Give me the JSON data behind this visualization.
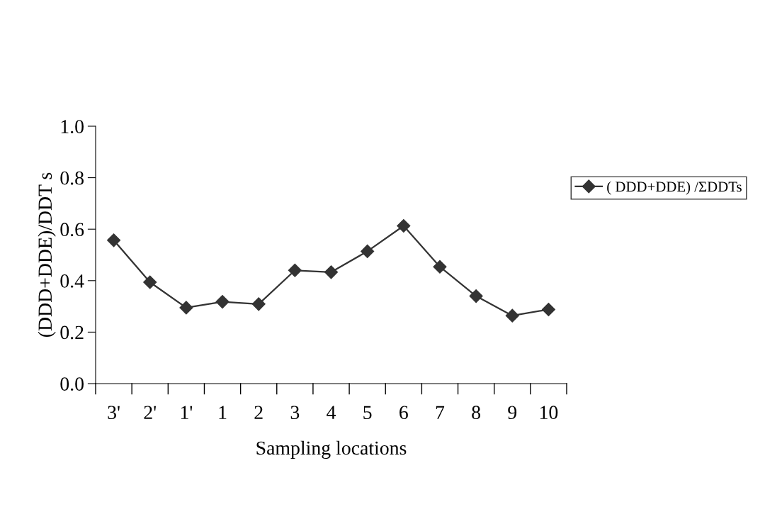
{
  "chart_data": {
    "type": "line",
    "xlabel": "Sampling locations",
    "ylabel": "(DDD+DDE)/DDT s",
    "categories": [
      "3'",
      "2'",
      "1'",
      "1",
      "2",
      "3",
      "4",
      "5",
      "6",
      "7",
      "8",
      "9",
      "10"
    ],
    "series": [
      {
        "name": "( DDD+DDE) /ΣDDTs",
        "color": "#333333",
        "values": [
          0.557,
          0.394,
          0.295,
          0.318,
          0.309,
          0.44,
          0.433,
          0.514,
          0.613,
          0.454,
          0.34,
          0.264,
          0.288
        ]
      }
    ],
    "ylim": [
      0,
      1.0
    ],
    "yticks": [
      {
        "value": 0,
        "label": "0.0"
      },
      {
        "value": 0.2,
        "label": "0.2"
      },
      {
        "value": 0.4,
        "label": "0.4"
      },
      {
        "value": 0.6,
        "label": "0.6"
      },
      {
        "value": 0.8,
        "label": "0.8"
      },
      {
        "value": 1.0,
        "label": "1.0"
      }
    ],
    "marker": "diamond",
    "line_style": "solid",
    "legend": "right",
    "grid": false
  }
}
